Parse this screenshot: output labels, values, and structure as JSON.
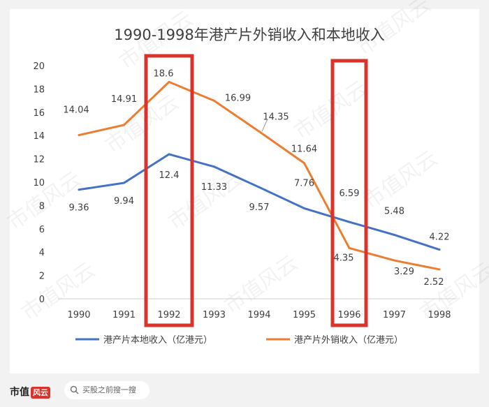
{
  "chart_data": {
    "type": "line",
    "title": "1990-1998年港产片外销收入和本地收入",
    "categories": [
      "1990",
      "1991",
      "1992",
      "1993",
      "1994",
      "1995",
      "1996",
      "1997",
      "1998"
    ],
    "ylim": [
      0,
      20
    ],
    "yticks": [
      0,
      2,
      4,
      6,
      8,
      10,
      12,
      14,
      16,
      18,
      20
    ],
    "grid": false,
    "legend_position": "bottom",
    "series": [
      {
        "name": "港产片本地收入（亿港元）",
        "color": "#4472c4",
        "values": [
          9.36,
          9.94,
          12.4,
          11.33,
          9.57,
          7.76,
          6.59,
          5.48,
          4.22
        ]
      },
      {
        "name": "港产片外销收入（亿港元）",
        "color": "#ed7d31",
        "values": [
          14.04,
          14.91,
          18.6,
          16.99,
          14.35,
          11.64,
          4.35,
          3.29,
          2.52
        ]
      }
    ],
    "highlights": [
      "1992",
      "1996"
    ],
    "highlight_color": "#d9342b"
  },
  "watermark": "市值风云",
  "footer": {
    "brand": "市值",
    "brand_mark": "风云",
    "search_icon": "search-icon",
    "search_text": "买股之前搜一搜"
  }
}
